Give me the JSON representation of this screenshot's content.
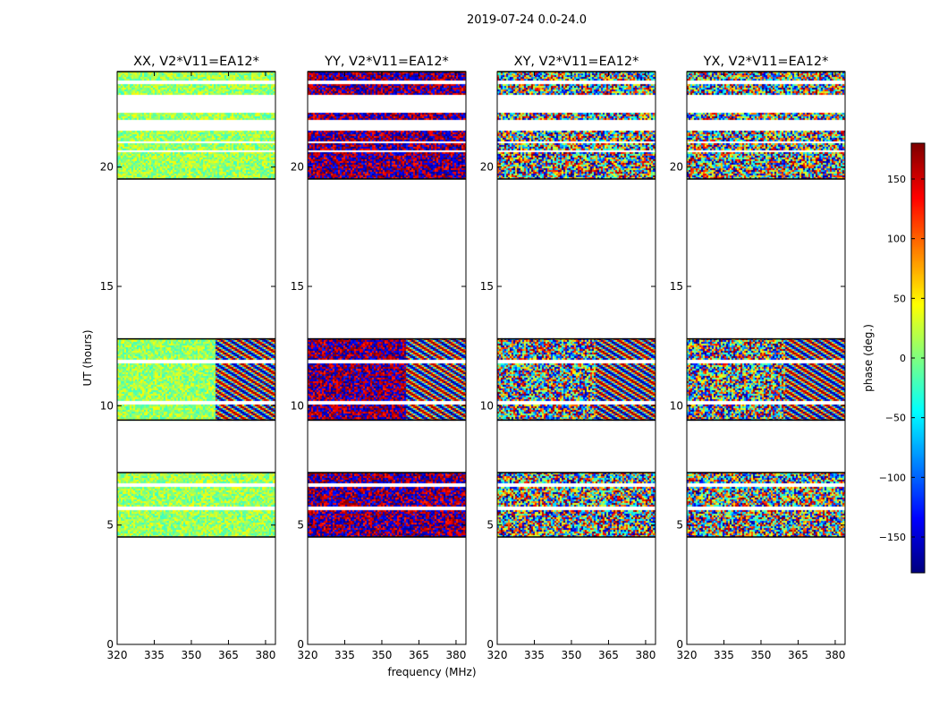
{
  "figure": {
    "suptitle": "2019-07-24 0.0-24.0"
  },
  "chart_data": {
    "type": "heatmap",
    "shared": {
      "xlabel": "frequency (MHz)",
      "ylabel": "UT (hours)",
      "xlim": [
        320,
        384
      ],
      "ylim": [
        0,
        24
      ],
      "xticks": [
        320,
        335,
        350,
        365,
        380
      ],
      "yticks": [
        0,
        5,
        10,
        15,
        20
      ],
      "value_label": "phase (deg.)",
      "value_range": [
        -180,
        180
      ],
      "data_time_ranges_hours": [
        [
          4.5,
          7.2
        ],
        [
          9.4,
          12.8
        ],
        [
          19.5,
          24.0
        ]
      ],
      "blank_time_gaps_hours": [
        [
          5.6,
          5.75
        ],
        [
          6.6,
          6.75
        ],
        [
          10.05,
          10.2
        ],
        [
          11.75,
          11.9
        ],
        [
          20.0,
          20.05
        ],
        [
          20.6,
          20.7
        ],
        [
          21.0,
          21.1
        ],
        [
          21.5,
          22.0
        ],
        [
          22.3,
          23.0
        ],
        [
          23.5,
          23.6
        ]
      ],
      "fringe_band_mhz": [
        360,
        384
      ]
    },
    "panels": [
      {
        "title": "XX, V2*V11=EA12*",
        "lowband_center_deg": 10,
        "lowband_spread_deg": 40
      },
      {
        "title": "YY, V2*V11=EA12*",
        "lowband_center_deg": 180,
        "lowband_spread_deg": 60
      },
      {
        "title": "XY, V2*V11=EA12*",
        "lowband_center_deg": 0,
        "lowband_spread_deg": 180
      },
      {
        "title": "YX, V2*V11=EA12*",
        "lowband_center_deg": 0,
        "lowband_spread_deg": 180
      }
    ],
    "colorbar": {
      "label": "phase (deg.)",
      "ticks": [
        -150,
        -100,
        -50,
        0,
        50,
        100,
        150
      ],
      "tick_labels": [
        "−150",
        "−100",
        "−50",
        "0",
        "50",
        "100",
        "150"
      ],
      "range": [
        -180,
        180
      ],
      "colormap": "jet"
    }
  }
}
